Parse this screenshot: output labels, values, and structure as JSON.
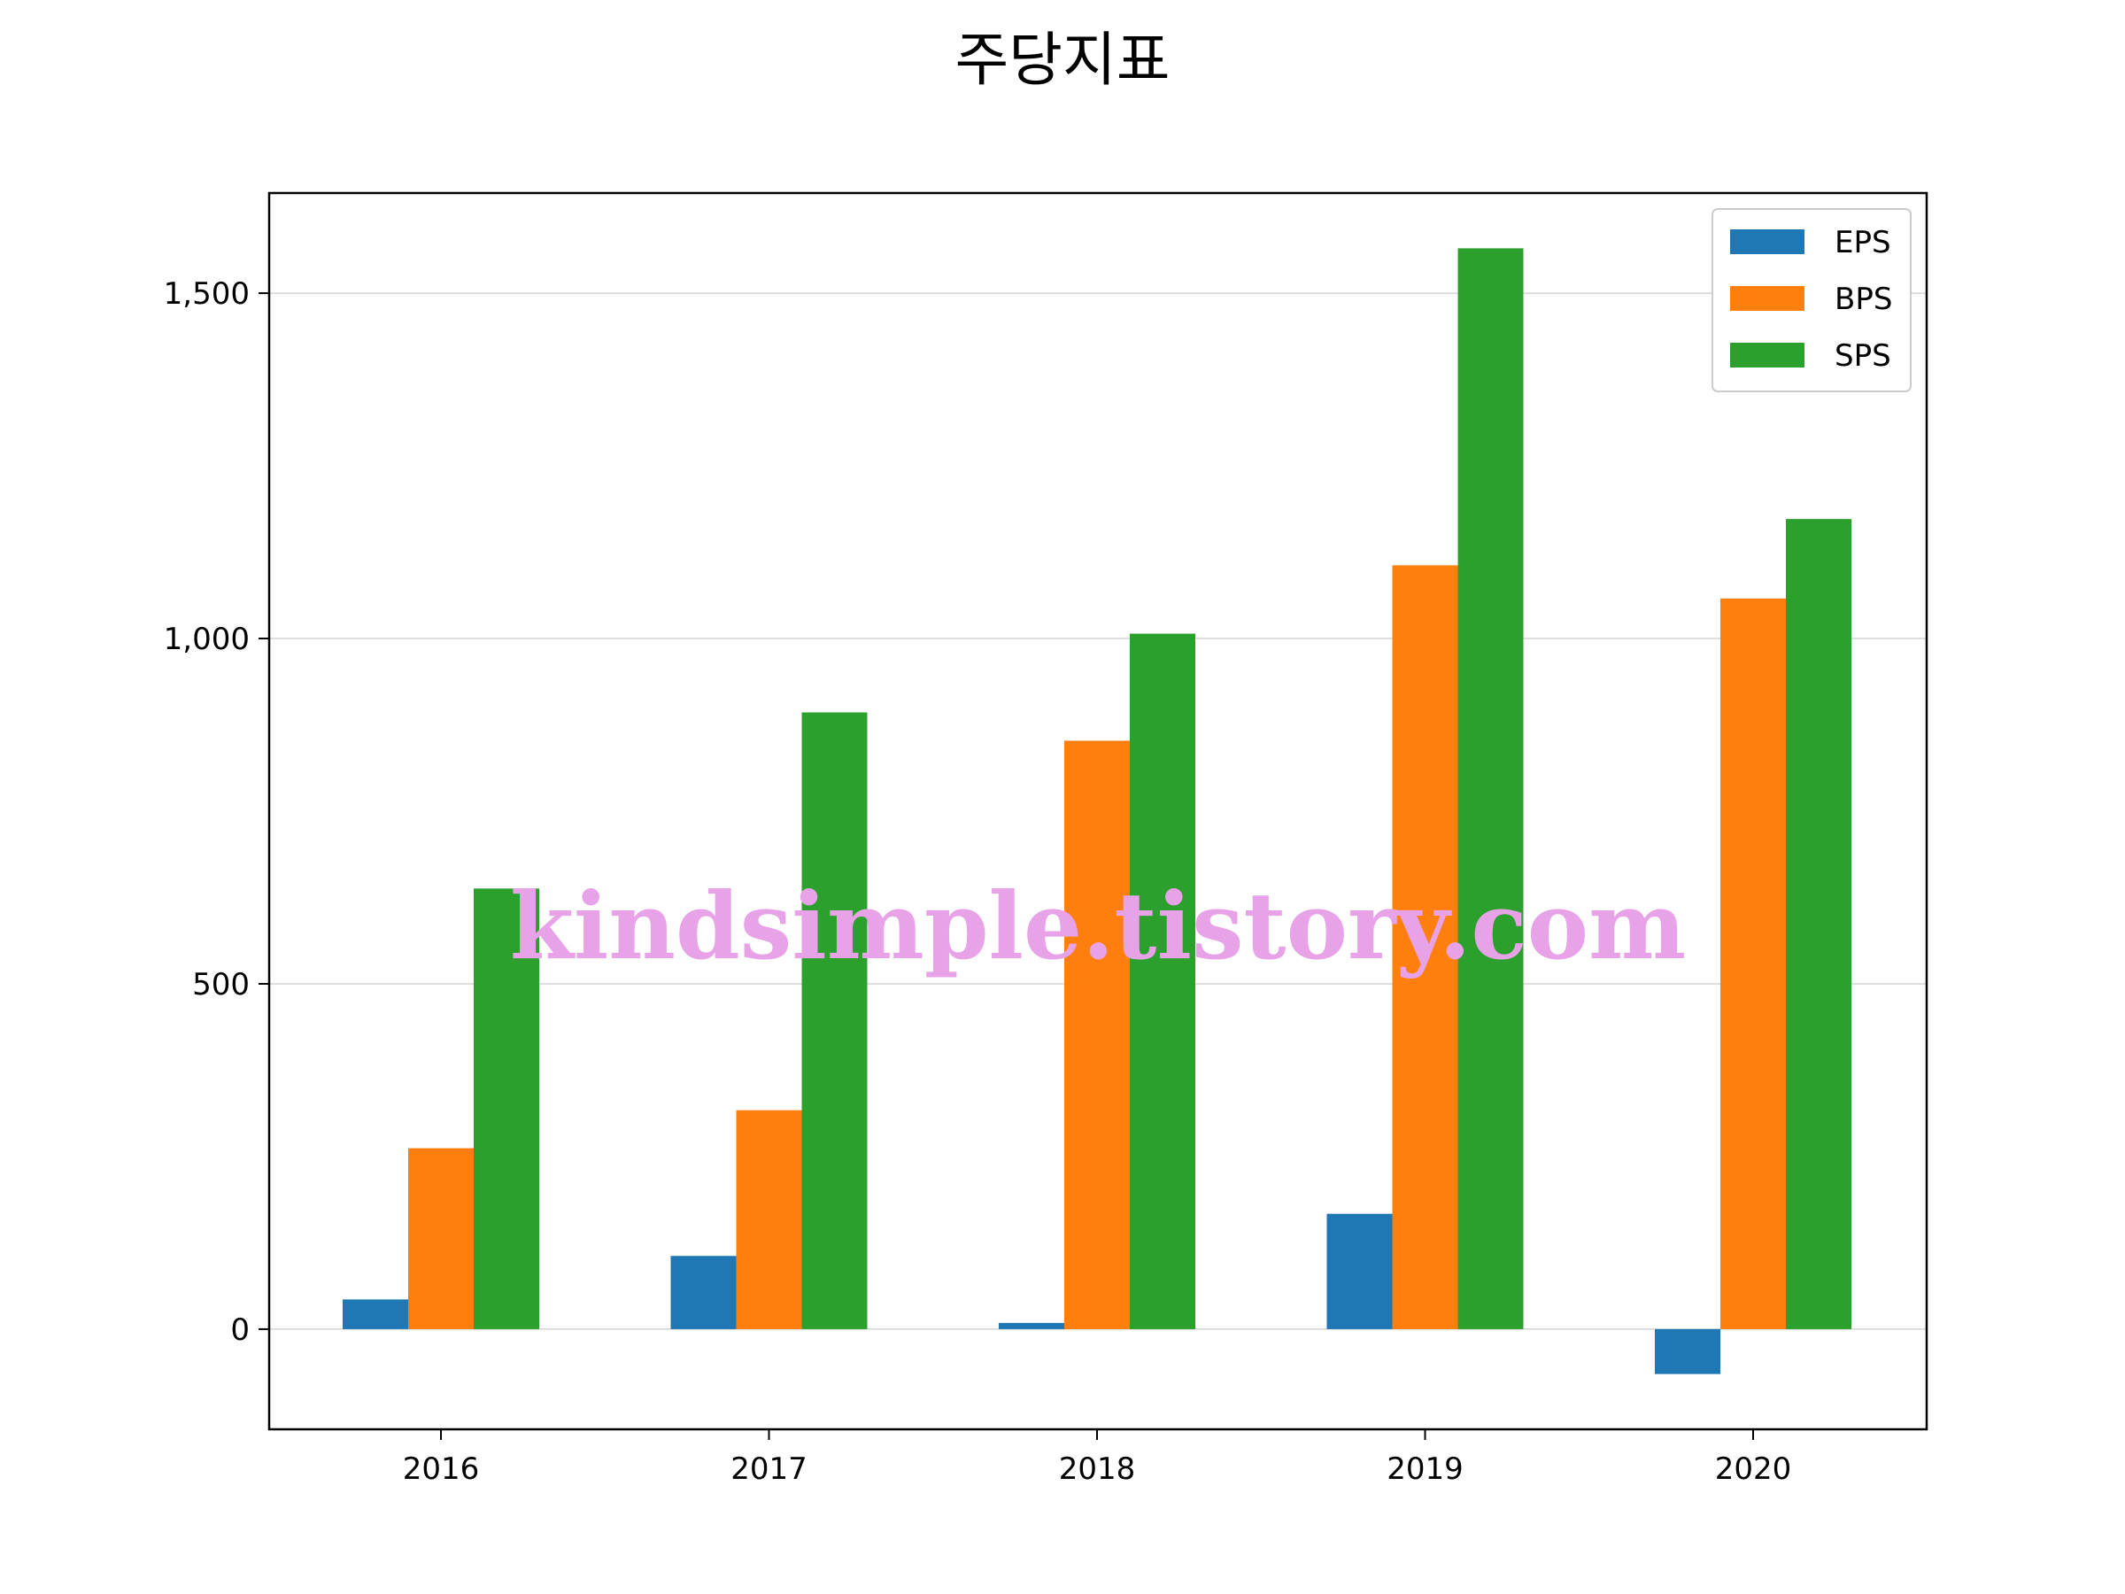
{
  "chart_data": {
    "type": "bar",
    "title": "주당지표",
    "categories": [
      "2016",
      "2017",
      "2018",
      "2019",
      "2020"
    ],
    "series": [
      {
        "name": "EPS",
        "color": "#1f77b4",
        "values": [
          43,
          106,
          9,
          167,
          -65
        ]
      },
      {
        "name": "BPS",
        "color": "#ff7f0e",
        "values": [
          262,
          317,
          852,
          1106,
          1058
        ]
      },
      {
        "name": "SPS",
        "color": "#2ca02c",
        "values": [
          638,
          893,
          1007,
          1565,
          1173
        ]
      }
    ],
    "ylim": [
      -145,
      1645
    ],
    "yticks": [
      0,
      500,
      1000,
      1500
    ],
    "ytick_labels": [
      "0",
      "500",
      "1,000",
      "1,500"
    ],
    "grid": "y",
    "legend_position": "top-right"
  },
  "watermark": "kindsimple.tistory.com"
}
